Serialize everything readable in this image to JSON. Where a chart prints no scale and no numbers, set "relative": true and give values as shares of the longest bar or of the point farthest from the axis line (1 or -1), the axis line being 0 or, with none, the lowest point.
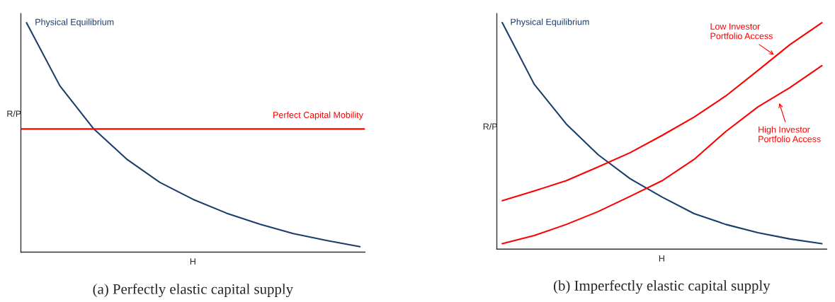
{
  "chart_data": [
    {
      "type": "line",
      "title": "(a) Perfectly elastic capital supply",
      "xlabel": "H",
      "ylabel": "R/P",
      "relative": true,
      "legend": false,
      "categories": [
        null,
        null,
        null,
        null,
        null,
        null,
        null,
        null,
        null,
        null,
        null
      ],
      "series": [
        {
          "name": "Physical Equilibrium",
          "color": "#1b3d6b",
          "values": [
            1.0,
            0.725,
            0.54,
            0.406,
            0.304,
            0.23,
            0.17,
            0.122,
            0.081,
            0.051,
            0.024
          ]
        }
      ],
      "ref_lines": [
        {
          "axis": "y",
          "value": 0.537,
          "label": "Perfect Capital Mobility",
          "color": "#ff0000"
        }
      ]
    },
    {
      "type": "line",
      "title": "(b) Imperfectly elastic capital supply",
      "xlabel": "H",
      "ylabel": "R/P",
      "relative": true,
      "categories": [
        null,
        null,
        null,
        null,
        null,
        null,
        null,
        null,
        null,
        null,
        null
      ],
      "series": [
        {
          "name": "Physical Equilibrium",
          "color": "#1b3d6b",
          "values": [
            1.0,
            0.728,
            0.553,
            0.417,
            0.311,
            0.23,
            0.157,
            0.109,
            0.073,
            0.045,
            0.024
          ]
        },
        {
          "name": "Low Investor\nPortfolio Access",
          "color": "#ff0000",
          "values": [
            0.214,
            0.257,
            0.302,
            0.363,
            0.426,
            0.502,
            0.583,
            0.677,
            0.789,
            0.903,
            1.0
          ]
        },
        {
          "name": "High Investor\nPortfolio Access",
          "color": "#ff0000",
          "values": [
            0.024,
            0.06,
            0.109,
            0.166,
            0.233,
            0.302,
            0.396,
            0.52,
            0.628,
            0.713,
            0.81
          ]
        }
      ]
    }
  ]
}
